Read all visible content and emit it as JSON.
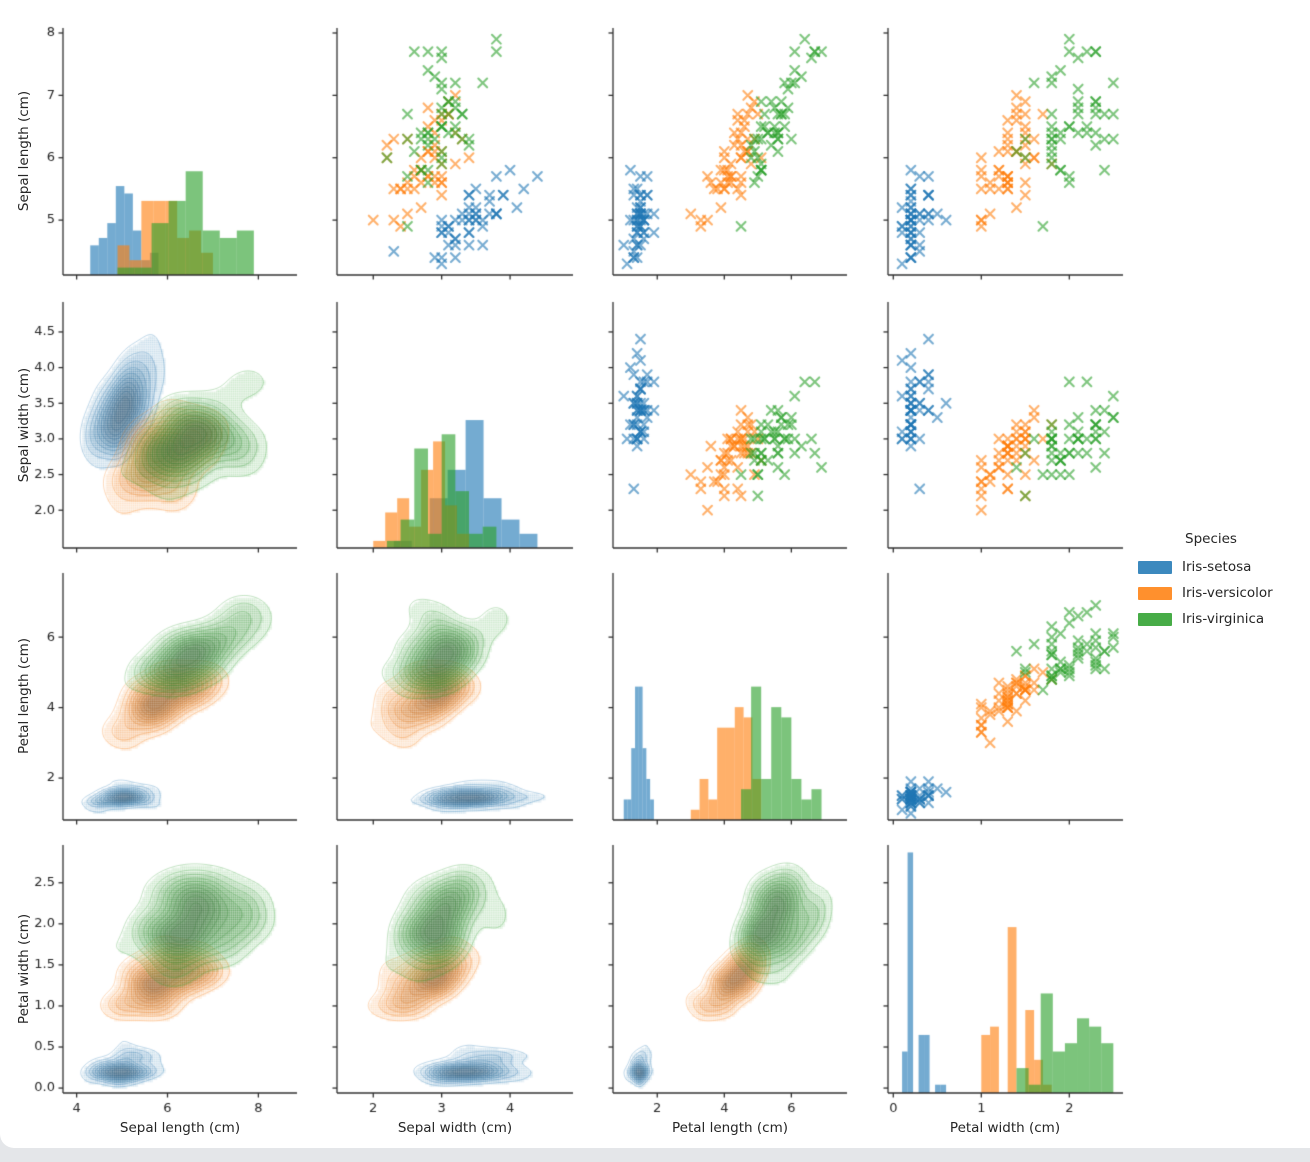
{
  "figure": {
    "background": "#ffffff",
    "axis_color": "#303030",
    "text_color": "#262626"
  },
  "legend": {
    "title": "Species"
  },
  "chart_data": {
    "type": "pairplot",
    "grid": {
      "rows": 4,
      "cols": 4,
      "diagonal": "histogram",
      "upper_triangle": "scatter",
      "lower_triangle": "kde_contour",
      "marker": "x"
    },
    "variables": [
      {
        "key": "sepal_length",
        "label": "Sepal length (cm)",
        "x_ticks": [
          "4",
          "6",
          "8"
        ],
        "x_tick_values": [
          4,
          6,
          8
        ],
        "x_range": [
          3.7,
          8.85
        ],
        "y_ticks": [
          "5",
          "6",
          "7",
          "8"
        ],
        "y_tick_values": [
          5,
          6,
          7,
          8
        ],
        "y_range": [
          4.12,
          8.08
        ]
      },
      {
        "key": "sepal_width",
        "label": "Sepal width (cm)",
        "x_ticks": [
          "2",
          "3",
          "4"
        ],
        "x_tick_values": [
          2,
          3,
          4
        ],
        "x_range": [
          1.47,
          4.92
        ],
        "y_ticks": [
          "2.0",
          "2.5",
          "3.0",
          "3.5",
          "4.0",
          "4.5"
        ],
        "y_tick_values": [
          2,
          2.5,
          3,
          3.5,
          4,
          4.5
        ],
        "y_range": [
          1.47,
          4.92
        ]
      },
      {
        "key": "petal_length",
        "label": "Petal length (cm)",
        "x_ticks": [
          "2",
          "4",
          "6"
        ],
        "x_tick_values": [
          2,
          4,
          6
        ],
        "x_range": [
          0.68,
          7.66
        ],
        "y_ticks": [
          "2",
          "4",
          "6"
        ],
        "y_tick_values": [
          2,
          4,
          6
        ],
        "y_range": [
          0.81,
          7.82
        ]
      },
      {
        "key": "petal_width",
        "label": "Petal width (cm)",
        "x_ticks": [
          "0",
          "1",
          "2"
        ],
        "x_tick_values": [
          0,
          1,
          2
        ],
        "x_range": [
          -0.06,
          2.61
        ],
        "y_ticks": [
          "0.0",
          "0.5",
          "1.0",
          "1.5",
          "2.0",
          "2.5"
        ],
        "y_tick_values": [
          0,
          0.5,
          1,
          1.5,
          2,
          2.5
        ],
        "y_range": [
          -0.06,
          2.96
        ]
      }
    ],
    "series": [
      {
        "name": "Iris-setosa",
        "color": "#1f77b4",
        "points": [
          [
            5.1,
            3.5,
            1.4,
            0.2
          ],
          [
            4.9,
            3.0,
            1.4,
            0.2
          ],
          [
            4.7,
            3.2,
            1.3,
            0.2
          ],
          [
            4.6,
            3.1,
            1.5,
            0.2
          ],
          [
            5.0,
            3.6,
            1.4,
            0.2
          ],
          [
            5.4,
            3.9,
            1.7,
            0.4
          ],
          [
            4.6,
            3.4,
            1.4,
            0.3
          ],
          [
            5.0,
            3.4,
            1.5,
            0.2
          ],
          [
            4.4,
            2.9,
            1.4,
            0.2
          ],
          [
            4.9,
            3.1,
            1.5,
            0.1
          ],
          [
            5.4,
            3.7,
            1.5,
            0.2
          ],
          [
            4.8,
            3.4,
            1.6,
            0.2
          ],
          [
            4.8,
            3.0,
            1.4,
            0.1
          ],
          [
            4.3,
            3.0,
            1.1,
            0.1
          ],
          [
            5.8,
            4.0,
            1.2,
            0.2
          ],
          [
            5.7,
            4.4,
            1.5,
            0.4
          ],
          [
            5.4,
            3.9,
            1.3,
            0.4
          ],
          [
            5.1,
            3.5,
            1.4,
            0.3
          ],
          [
            5.7,
            3.8,
            1.7,
            0.3
          ],
          [
            5.1,
            3.8,
            1.5,
            0.3
          ],
          [
            5.4,
            3.4,
            1.7,
            0.2
          ],
          [
            5.1,
            3.7,
            1.5,
            0.4
          ],
          [
            4.6,
            3.6,
            1.0,
            0.2
          ],
          [
            5.1,
            3.3,
            1.7,
            0.5
          ],
          [
            4.8,
            3.4,
            1.9,
            0.2
          ],
          [
            5.0,
            3.0,
            1.6,
            0.2
          ],
          [
            5.0,
            3.4,
            1.6,
            0.4
          ],
          [
            5.2,
            3.5,
            1.5,
            0.2
          ],
          [
            5.2,
            3.4,
            1.4,
            0.2
          ],
          [
            4.7,
            3.2,
            1.6,
            0.2
          ],
          [
            4.8,
            3.1,
            1.6,
            0.2
          ],
          [
            5.4,
            3.4,
            1.5,
            0.4
          ],
          [
            5.2,
            4.1,
            1.5,
            0.1
          ],
          [
            5.5,
            4.2,
            1.4,
            0.2
          ],
          [
            4.9,
            3.1,
            1.5,
            0.2
          ],
          [
            5.0,
            3.2,
            1.2,
            0.2
          ],
          [
            5.5,
            3.5,
            1.3,
            0.2
          ],
          [
            4.9,
            3.6,
            1.4,
            0.1
          ],
          [
            4.4,
            3.0,
            1.3,
            0.2
          ],
          [
            5.1,
            3.4,
            1.5,
            0.2
          ],
          [
            5.0,
            3.5,
            1.3,
            0.3
          ],
          [
            4.5,
            2.3,
            1.3,
            0.3
          ],
          [
            4.4,
            3.2,
            1.3,
            0.2
          ],
          [
            5.0,
            3.5,
            1.6,
            0.6
          ],
          [
            5.1,
            3.8,
            1.9,
            0.4
          ],
          [
            4.8,
            3.0,
            1.4,
            0.3
          ],
          [
            5.1,
            3.8,
            1.6,
            0.2
          ],
          [
            4.6,
            3.2,
            1.4,
            0.2
          ],
          [
            5.3,
            3.7,
            1.5,
            0.2
          ],
          [
            5.0,
            3.3,
            1.4,
            0.2
          ]
        ]
      },
      {
        "name": "Iris-versicolor",
        "color": "#ff7f0e",
        "points": [
          [
            7.0,
            3.2,
            4.7,
            1.4
          ],
          [
            6.4,
            3.2,
            4.5,
            1.5
          ],
          [
            6.9,
            3.1,
            4.9,
            1.5
          ],
          [
            5.5,
            2.3,
            4.0,
            1.3
          ],
          [
            6.5,
            2.8,
            4.6,
            1.5
          ],
          [
            5.7,
            2.8,
            4.5,
            1.3
          ],
          [
            6.3,
            3.3,
            4.7,
            1.6
          ],
          [
            4.9,
            2.4,
            3.3,
            1.0
          ],
          [
            6.6,
            2.9,
            4.6,
            1.3
          ],
          [
            5.2,
            2.7,
            3.9,
            1.4
          ],
          [
            5.0,
            2.0,
            3.5,
            1.0
          ],
          [
            5.9,
            3.0,
            4.2,
            1.5
          ],
          [
            6.0,
            2.2,
            4.0,
            1.0
          ],
          [
            6.1,
            2.9,
            4.7,
            1.4
          ],
          [
            5.6,
            2.9,
            3.6,
            1.3
          ],
          [
            6.7,
            3.1,
            4.4,
            1.4
          ],
          [
            5.6,
            3.0,
            4.5,
            1.5
          ],
          [
            5.8,
            2.7,
            4.1,
            1.0
          ],
          [
            6.2,
            2.2,
            4.5,
            1.5
          ],
          [
            5.6,
            2.5,
            3.9,
            1.1
          ],
          [
            5.9,
            3.2,
            4.8,
            1.8
          ],
          [
            6.1,
            2.8,
            4.0,
            1.3
          ],
          [
            6.3,
            2.5,
            4.9,
            1.5
          ],
          [
            6.1,
            2.8,
            4.7,
            1.2
          ],
          [
            6.4,
            2.9,
            4.3,
            1.3
          ],
          [
            6.6,
            3.0,
            4.4,
            1.4
          ],
          [
            6.8,
            2.8,
            4.8,
            1.4
          ],
          [
            6.7,
            3.0,
            5.0,
            1.7
          ],
          [
            6.0,
            2.9,
            4.5,
            1.5
          ],
          [
            5.7,
            2.6,
            3.5,
            1.0
          ],
          [
            5.5,
            2.4,
            3.8,
            1.1
          ],
          [
            5.5,
            2.4,
            3.7,
            1.0
          ],
          [
            5.8,
            2.7,
            3.9,
            1.2
          ],
          [
            6.0,
            2.7,
            5.1,
            1.6
          ],
          [
            5.4,
            3.0,
            4.5,
            1.5
          ],
          [
            6.0,
            3.4,
            4.5,
            1.6
          ],
          [
            6.7,
            3.1,
            4.7,
            1.5
          ],
          [
            6.3,
            2.3,
            4.4,
            1.3
          ],
          [
            5.6,
            3.0,
            4.1,
            1.3
          ],
          [
            5.5,
            2.5,
            4.0,
            1.3
          ],
          [
            5.5,
            2.6,
            4.4,
            1.2
          ],
          [
            6.1,
            3.0,
            4.6,
            1.4
          ],
          [
            5.8,
            2.6,
            4.0,
            1.2
          ],
          [
            5.0,
            2.3,
            3.3,
            1.0
          ],
          [
            5.6,
            2.7,
            4.2,
            1.3
          ],
          [
            5.7,
            3.0,
            4.2,
            1.2
          ],
          [
            5.7,
            2.9,
            4.2,
            1.3
          ],
          [
            6.2,
            2.9,
            4.3,
            1.3
          ],
          [
            5.1,
            2.5,
            3.0,
            1.1
          ],
          [
            5.7,
            2.8,
            4.1,
            1.3
          ]
        ]
      },
      {
        "name": "Iris-virginica",
        "color": "#2ca02c",
        "points": [
          [
            6.3,
            3.3,
            6.0,
            2.5
          ],
          [
            5.8,
            2.7,
            5.1,
            1.9
          ],
          [
            7.1,
            3.0,
            5.9,
            2.1
          ],
          [
            6.3,
            2.9,
            5.6,
            1.8
          ],
          [
            6.5,
            3.0,
            5.8,
            2.2
          ],
          [
            7.6,
            3.0,
            6.6,
            2.1
          ],
          [
            4.9,
            2.5,
            4.5,
            1.7
          ],
          [
            7.3,
            2.9,
            6.3,
            1.8
          ],
          [
            6.7,
            2.5,
            5.8,
            1.8
          ],
          [
            7.2,
            3.6,
            6.1,
            2.5
          ],
          [
            6.5,
            3.2,
            5.1,
            2.0
          ],
          [
            6.4,
            2.7,
            5.3,
            1.9
          ],
          [
            6.8,
            3.0,
            5.5,
            2.1
          ],
          [
            5.7,
            2.5,
            5.0,
            2.0
          ],
          [
            5.8,
            2.8,
            5.1,
            2.4
          ],
          [
            6.4,
            3.2,
            5.3,
            2.3
          ],
          [
            6.5,
            3.0,
            5.5,
            1.8
          ],
          [
            7.7,
            3.8,
            6.7,
            2.2
          ],
          [
            7.7,
            2.6,
            6.9,
            2.3
          ],
          [
            6.0,
            2.2,
            5.0,
            1.5
          ],
          [
            6.9,
            3.2,
            5.7,
            2.3
          ],
          [
            5.6,
            2.8,
            4.9,
            2.0
          ],
          [
            7.7,
            2.8,
            6.7,
            2.0
          ],
          [
            6.3,
            2.7,
            4.9,
            1.8
          ],
          [
            6.7,
            3.3,
            5.7,
            2.1
          ],
          [
            7.2,
            3.2,
            6.0,
            1.8
          ],
          [
            6.2,
            2.8,
            4.8,
            1.8
          ],
          [
            6.1,
            3.0,
            4.9,
            1.8
          ],
          [
            6.4,
            2.8,
            5.6,
            2.1
          ],
          [
            7.2,
            3.0,
            5.8,
            1.6
          ],
          [
            7.4,
            2.8,
            6.1,
            1.9
          ],
          [
            7.9,
            3.8,
            6.4,
            2.0
          ],
          [
            6.4,
            2.8,
            5.6,
            2.2
          ],
          [
            6.3,
            2.8,
            5.1,
            1.5
          ],
          [
            6.1,
            2.6,
            5.6,
            1.4
          ],
          [
            7.7,
            3.0,
            6.1,
            2.3
          ],
          [
            6.3,
            3.4,
            5.6,
            2.4
          ],
          [
            6.4,
            3.1,
            5.5,
            1.8
          ],
          [
            6.0,
            3.0,
            4.8,
            1.8
          ],
          [
            6.9,
            3.1,
            5.4,
            2.1
          ],
          [
            6.7,
            3.1,
            5.6,
            2.4
          ],
          [
            6.9,
            3.1,
            5.1,
            2.3
          ],
          [
            5.8,
            2.7,
            5.1,
            1.9
          ],
          [
            6.8,
            3.2,
            5.9,
            2.3
          ],
          [
            6.7,
            3.3,
            5.7,
            2.5
          ],
          [
            6.7,
            3.0,
            5.2,
            2.3
          ],
          [
            6.3,
            2.5,
            5.0,
            1.9
          ],
          [
            6.5,
            3.0,
            5.2,
            2.0
          ],
          [
            6.2,
            3.4,
            5.4,
            2.3
          ],
          [
            5.9,
            3.0,
            5.1,
            1.8
          ]
        ]
      }
    ]
  }
}
